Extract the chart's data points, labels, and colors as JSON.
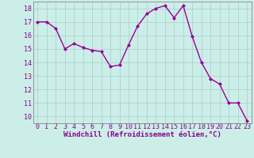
{
  "x": [
    0,
    1,
    2,
    3,
    4,
    5,
    6,
    7,
    8,
    9,
    10,
    11,
    12,
    13,
    14,
    15,
    16,
    17,
    18,
    19,
    20,
    21,
    22,
    23
  ],
  "y": [
    17.0,
    17.0,
    16.5,
    15.0,
    15.4,
    15.1,
    14.9,
    14.8,
    13.7,
    13.8,
    15.3,
    16.7,
    17.6,
    18.0,
    18.2,
    17.3,
    18.2,
    15.9,
    14.0,
    12.8,
    12.4,
    11.0,
    11.0,
    9.7
  ],
  "line_color": "#990099",
  "marker": "D",
  "marker_size": 2.0,
  "linewidth": 1.0,
  "xlabel": "Windchill (Refroidissement éolien,°C)",
  "xlabel_fontsize": 6.5,
  "ylim": [
    9.5,
    18.5
  ],
  "xlim": [
    -0.5,
    23.5
  ],
  "yticks": [
    10,
    11,
    12,
    13,
    14,
    15,
    16,
    17,
    18
  ],
  "xticks": [
    0,
    1,
    2,
    3,
    4,
    5,
    6,
    7,
    8,
    9,
    10,
    11,
    12,
    13,
    14,
    15,
    16,
    17,
    18,
    19,
    20,
    21,
    22,
    23
  ],
  "grid_color": "#aacccc",
  "bg_color": "#cceee8",
  "tick_fontsize": 6.0,
  "tick_color": "#880088",
  "spine_color": "#888888"
}
